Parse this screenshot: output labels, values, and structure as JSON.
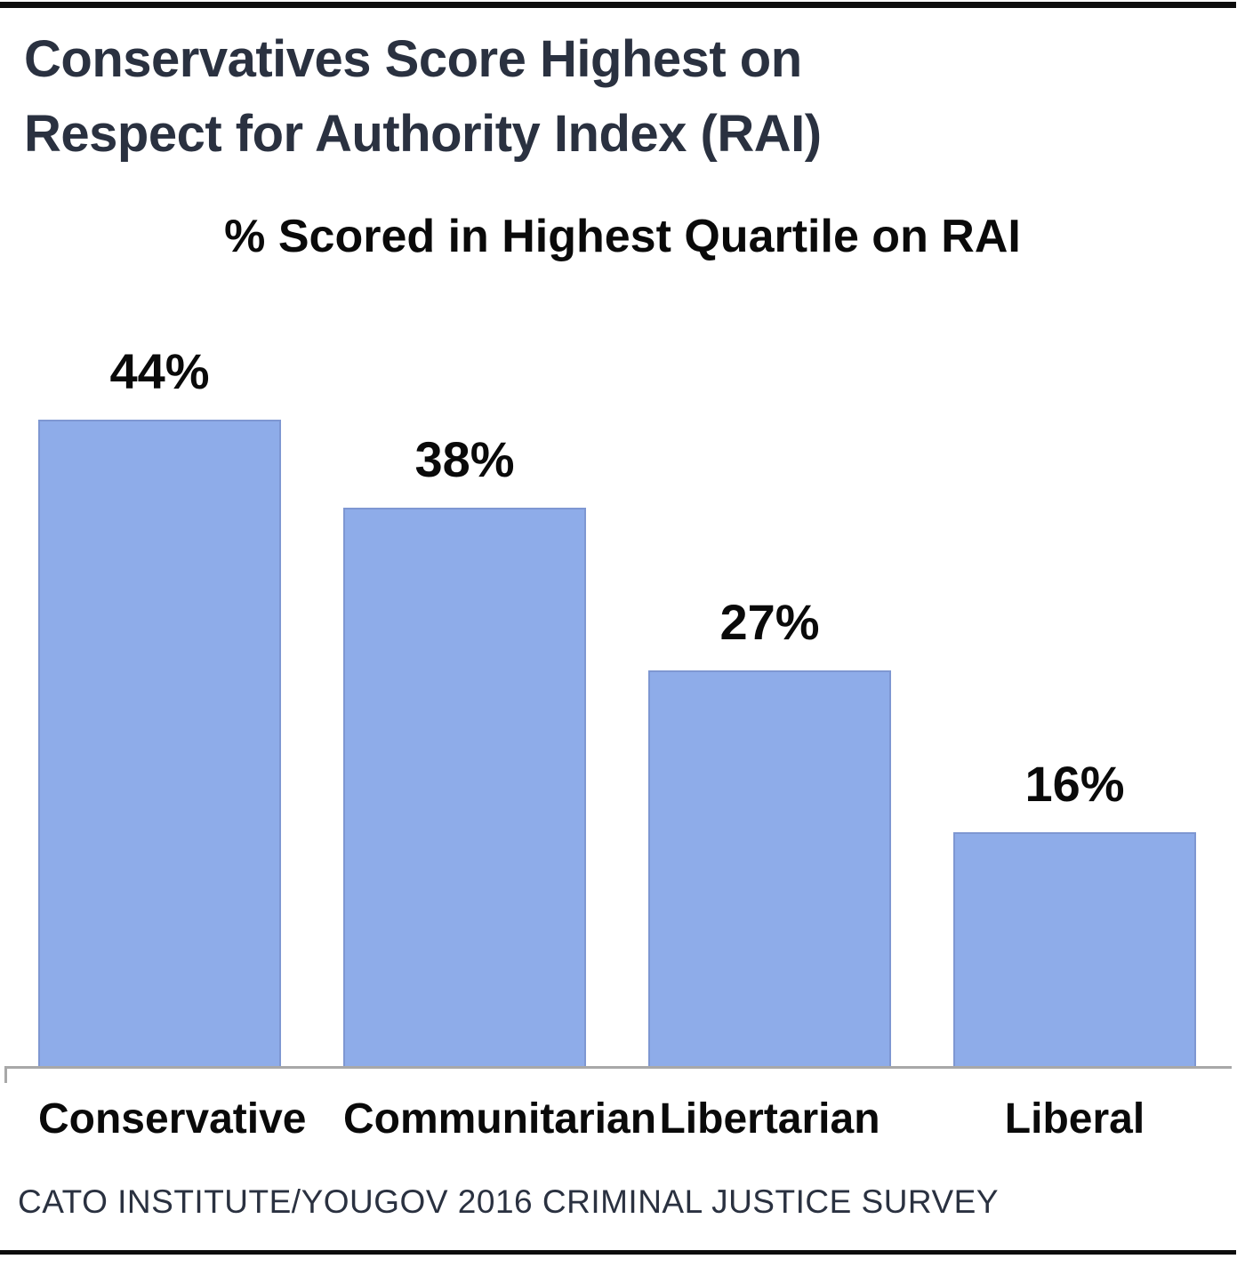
{
  "header": {
    "title_line1": "Conservatives Score Highest on",
    "title_line2": "Respect for Authority Index (RAI)"
  },
  "chart_data": {
    "type": "bar",
    "title": "% Scored in Highest Quartile on RAI",
    "categories": [
      "Conservative",
      "Communitarian",
      "Libertarian",
      "Liberal"
    ],
    "values": [
      44,
      38,
      27,
      16
    ],
    "value_labels": [
      "44%",
      "38%",
      "27%",
      "16%"
    ],
    "xlabel": "",
    "ylabel": "",
    "ylim": [
      0,
      50
    ],
    "grid": false,
    "legend": false,
    "bar_color": "#8eace9",
    "bar_border_color": "#7e97d2",
    "axis_color": "#a8a8a8"
  },
  "footer": {
    "source": "CATO INSTITUTE/YOUGOV 2016 CRIMINAL JUSTICE SURVEY"
  },
  "colors": {
    "title_text": "#2a3140",
    "chart_text": "#0a0a0a",
    "rule": "#0d0d0d",
    "background": "#ffffff"
  }
}
